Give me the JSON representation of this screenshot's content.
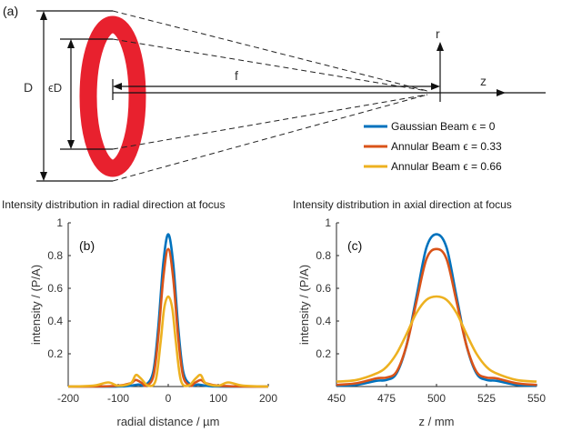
{
  "schematic": {
    "panel_label": "(a)",
    "label_D": "D",
    "label_eD": "ϵD",
    "label_f": "f",
    "label_r": "r",
    "label_z": "z",
    "ring_color": "#e8212e",
    "legend": [
      {
        "name": "Gaussian Beam ϵ = 0",
        "color": "#0072bd"
      },
      {
        "name": "Annular Beam ϵ = 0.33",
        "color": "#d95319"
      },
      {
        "name": "Annular Beam ϵ = 0.66",
        "color": "#edb120"
      }
    ]
  },
  "chart_data": [
    {
      "type": "line",
      "panel_label": "(b)",
      "title": "Intensity distribution in radial direction at focus",
      "xlabel": "radial distance / µm",
      "ylabel": "intensity / (P/A)",
      "xlim": [
        -200,
        200
      ],
      "ylim": [
        0,
        1
      ],
      "xticks": [
        -200,
        -100,
        0,
        100,
        200
      ],
      "yticks": [
        0.2,
        0.4,
        0.6,
        0.8,
        1
      ],
      "series": [
        {
          "color": "#0072bd",
          "x": [
            -200,
            -150,
            -100,
            -75,
            -60,
            -45,
            -30,
            -20,
            -10,
            0,
            10,
            20,
            30,
            45,
            60,
            75,
            100,
            150,
            200
          ],
          "y": [
            0,
            0,
            0,
            0.005,
            0.012,
            0.01,
            0.09,
            0.36,
            0.75,
            0.93,
            0.75,
            0.36,
            0.09,
            0.01,
            0.012,
            0.005,
            0,
            0,
            0
          ]
        },
        {
          "color": "#d95319",
          "x": [
            -200,
            -150,
            -100,
            -75,
            -65,
            -52,
            -45,
            -30,
            -20,
            -10,
            0,
            10,
            20,
            30,
            45,
            52,
            65,
            75,
            100,
            150,
            200
          ],
          "y": [
            0,
            0,
            0.005,
            0.02,
            0.04,
            0.02,
            0.005,
            0.06,
            0.3,
            0.66,
            0.84,
            0.66,
            0.3,
            0.06,
            0.005,
            0.02,
            0.04,
            0.02,
            0.005,
            0,
            0
          ]
        },
        {
          "color": "#edb120",
          "x": [
            -200,
            -150,
            -120,
            -100,
            -75,
            -65,
            -55,
            -40,
            -25,
            -15,
            -8,
            0,
            8,
            15,
            25,
            40,
            55,
            65,
            75,
            100,
            120,
            150,
            200
          ],
          "y": [
            0,
            0.005,
            0.025,
            0.005,
            0.02,
            0.07,
            0.05,
            0.005,
            0.04,
            0.28,
            0.48,
            0.55,
            0.48,
            0.28,
            0.04,
            0.005,
            0.05,
            0.07,
            0.02,
            0.005,
            0.025,
            0.005,
            0
          ]
        }
      ]
    },
    {
      "type": "line",
      "panel_label": "(c)",
      "title": "Intensity distribution in axial direction at focus",
      "xlabel": "z / mm",
      "ylabel": "intensity / (P/A)",
      "xlim": [
        450,
        550
      ],
      "ylim": [
        0,
        1
      ],
      "xticks": [
        450,
        475,
        500,
        525,
        550
      ],
      "yticks": [
        0.2,
        0.4,
        0.6,
        0.8,
        1
      ],
      "series": [
        {
          "color": "#0072bd",
          "x": [
            450,
            460,
            470,
            475,
            480,
            485,
            490,
            495,
            500,
            505,
            510,
            515,
            520,
            525,
            530,
            540,
            550
          ],
          "y": [
            0.005,
            0.01,
            0.035,
            0.04,
            0.08,
            0.25,
            0.55,
            0.85,
            0.93,
            0.85,
            0.55,
            0.25,
            0.08,
            0.04,
            0.035,
            0.01,
            0.005
          ]
        },
        {
          "color": "#d95319",
          "x": [
            450,
            460,
            470,
            475,
            480,
            485,
            490,
            495,
            500,
            505,
            510,
            515,
            520,
            525,
            530,
            540,
            550
          ],
          "y": [
            0.01,
            0.02,
            0.05,
            0.055,
            0.09,
            0.25,
            0.52,
            0.78,
            0.84,
            0.78,
            0.52,
            0.25,
            0.09,
            0.055,
            0.05,
            0.02,
            0.01
          ]
        },
        {
          "color": "#edb120",
          "x": [
            450,
            460,
            470,
            475,
            480,
            485,
            490,
            495,
            500,
            505,
            510,
            515,
            520,
            525,
            530,
            540,
            550
          ],
          "y": [
            0.03,
            0.04,
            0.08,
            0.12,
            0.2,
            0.32,
            0.45,
            0.53,
            0.55,
            0.53,
            0.45,
            0.32,
            0.2,
            0.12,
            0.08,
            0.04,
            0.03
          ]
        }
      ]
    }
  ]
}
